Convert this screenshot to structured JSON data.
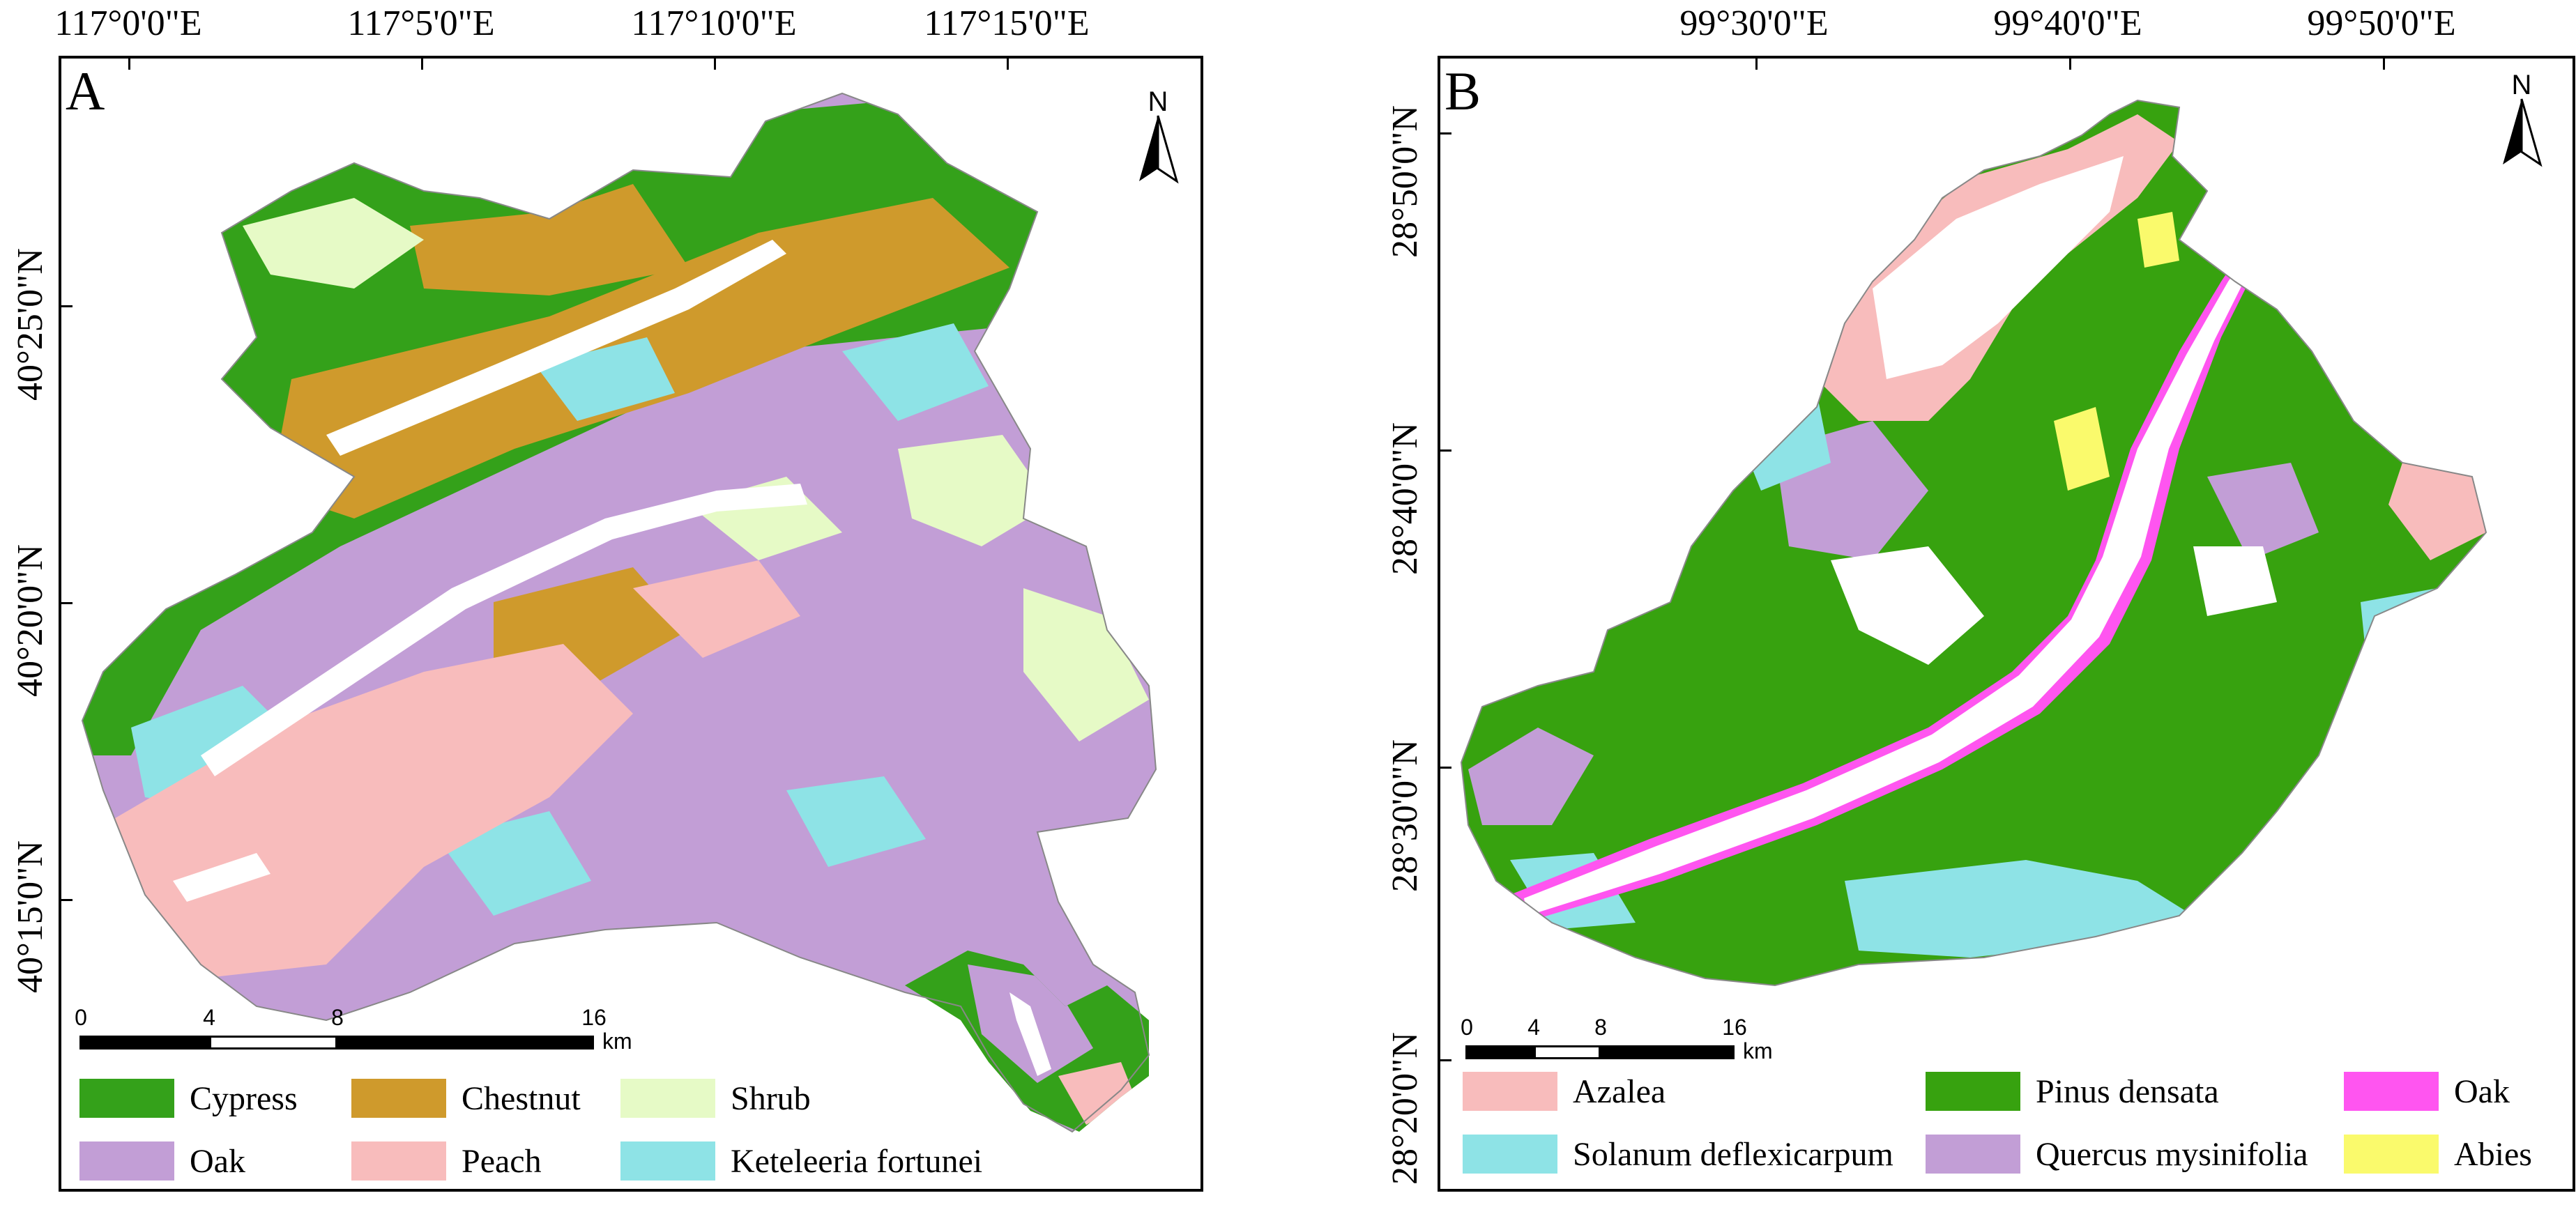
{
  "panel_a": {
    "letter": "A",
    "north": "N",
    "lon_labels": [
      "117°0'0\"E",
      "117°5'0\"E",
      "117°10'0\"E",
      "117°15'0\"E"
    ],
    "lat_labels": [
      "40°25'0\"N",
      "40°20'0\"N",
      "40°15'0\"N"
    ],
    "scale": {
      "ticks": [
        "0",
        "4",
        "8",
        "16"
      ],
      "unit": "km"
    },
    "legend": [
      {
        "label": "Cypress",
        "color": "#34a11a"
      },
      {
        "label": "Chestnut",
        "color": "#cf9a2c"
      },
      {
        "label": "Shrub",
        "color": "#e6fac6"
      },
      {
        "label": "Oak",
        "color": "#c29ed6"
      },
      {
        "label": "Peach",
        "color": "#f8bcbc"
      },
      {
        "label": "Keteleeria fortunei",
        "color": "#8ee3e6"
      }
    ]
  },
  "panel_b": {
    "letter": "B",
    "north": "N",
    "lon_labels": [
      "99°30'0\"E",
      "99°40'0\"E",
      "99°50'0\"E"
    ],
    "lat_labels": [
      "28°50'0\"N",
      "28°40'0\"N",
      "28°30'0\"N",
      "28°20'0\"N"
    ],
    "scale": {
      "ticks": [
        "0",
        "4",
        "8",
        "16"
      ],
      "unit": "km"
    },
    "legend": [
      {
        "label": "Azalea",
        "color": "#f8bcbc"
      },
      {
        "label": "Pinus densata",
        "color": "#37a20f"
      },
      {
        "label": "Oak",
        "color": "#ff55f0"
      },
      {
        "label": "Solanum deflexicarpum",
        "color": "#8ee3e6"
      },
      {
        "label": "Quercus mysinifolia",
        "color": "#c29ed6"
      },
      {
        "label": "Abies",
        "color": "#fafa6c"
      }
    ]
  }
}
